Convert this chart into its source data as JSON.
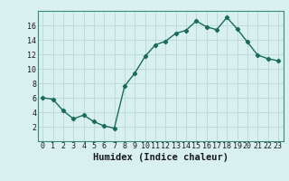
{
  "title": "",
  "xlabel": "Humidex (Indice chaleur)",
  "ylabel": "",
  "x": [
    0,
    1,
    2,
    3,
    4,
    5,
    6,
    7,
    8,
    9,
    10,
    11,
    12,
    13,
    14,
    15,
    16,
    17,
    18,
    19,
    20,
    21,
    22,
    23
  ],
  "y": [
    6.0,
    5.8,
    4.2,
    3.1,
    3.6,
    2.7,
    2.1,
    1.8,
    7.6,
    9.4,
    11.7,
    13.3,
    13.8,
    14.9,
    15.3,
    16.6,
    15.8,
    15.4,
    17.1,
    15.5,
    13.7,
    11.9,
    11.4,
    11.1
  ],
  "line_color": "#1a6b5a",
  "marker": "D",
  "marker_size": 2.2,
  "bg_color": "#d8f0f0",
  "grid_color": "#b8d8d8",
  "ylim": [
    0,
    18
  ],
  "xlim": [
    -0.5,
    23.5
  ],
  "yticks": [
    2,
    4,
    6,
    8,
    10,
    12,
    14,
    16
  ],
  "xticks": [
    0,
    1,
    2,
    3,
    4,
    5,
    6,
    7,
    8,
    9,
    10,
    11,
    12,
    13,
    14,
    15,
    16,
    17,
    18,
    19,
    20,
    21,
    22,
    23
  ],
  "tick_fontsize": 6.0,
  "xlabel_fontsize": 7.5,
  "linewidth": 1.0
}
